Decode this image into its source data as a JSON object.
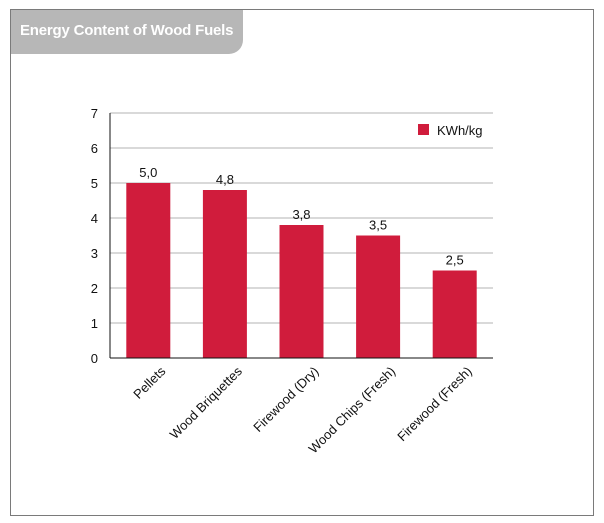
{
  "chart_data": {
    "type": "bar",
    "title": "Energy Content of Wood Fuels",
    "xlabel": "",
    "ylabel": "",
    "categories": [
      "Pellets",
      "Wood Briquettes",
      "Firewood (Dry)",
      "Wood Chips (Fresh)",
      "Firewood (Fresh)"
    ],
    "series": [
      {
        "name": "KWh/kg",
        "values": [
          5.0,
          4.8,
          3.8,
          3.5,
          2.5
        ],
        "color": "#d01c3c"
      }
    ],
    "data_labels": [
      "5,0",
      "4,8",
      "3,8",
      "3,5",
      "2,5"
    ],
    "ylim": [
      0,
      7
    ],
    "yticks": [
      "0",
      "1",
      "2",
      "3",
      "4",
      "5",
      "6",
      "7"
    ],
    "grid": true,
    "grid_color": "#b3b3b3",
    "legend_position": "top-right"
  }
}
